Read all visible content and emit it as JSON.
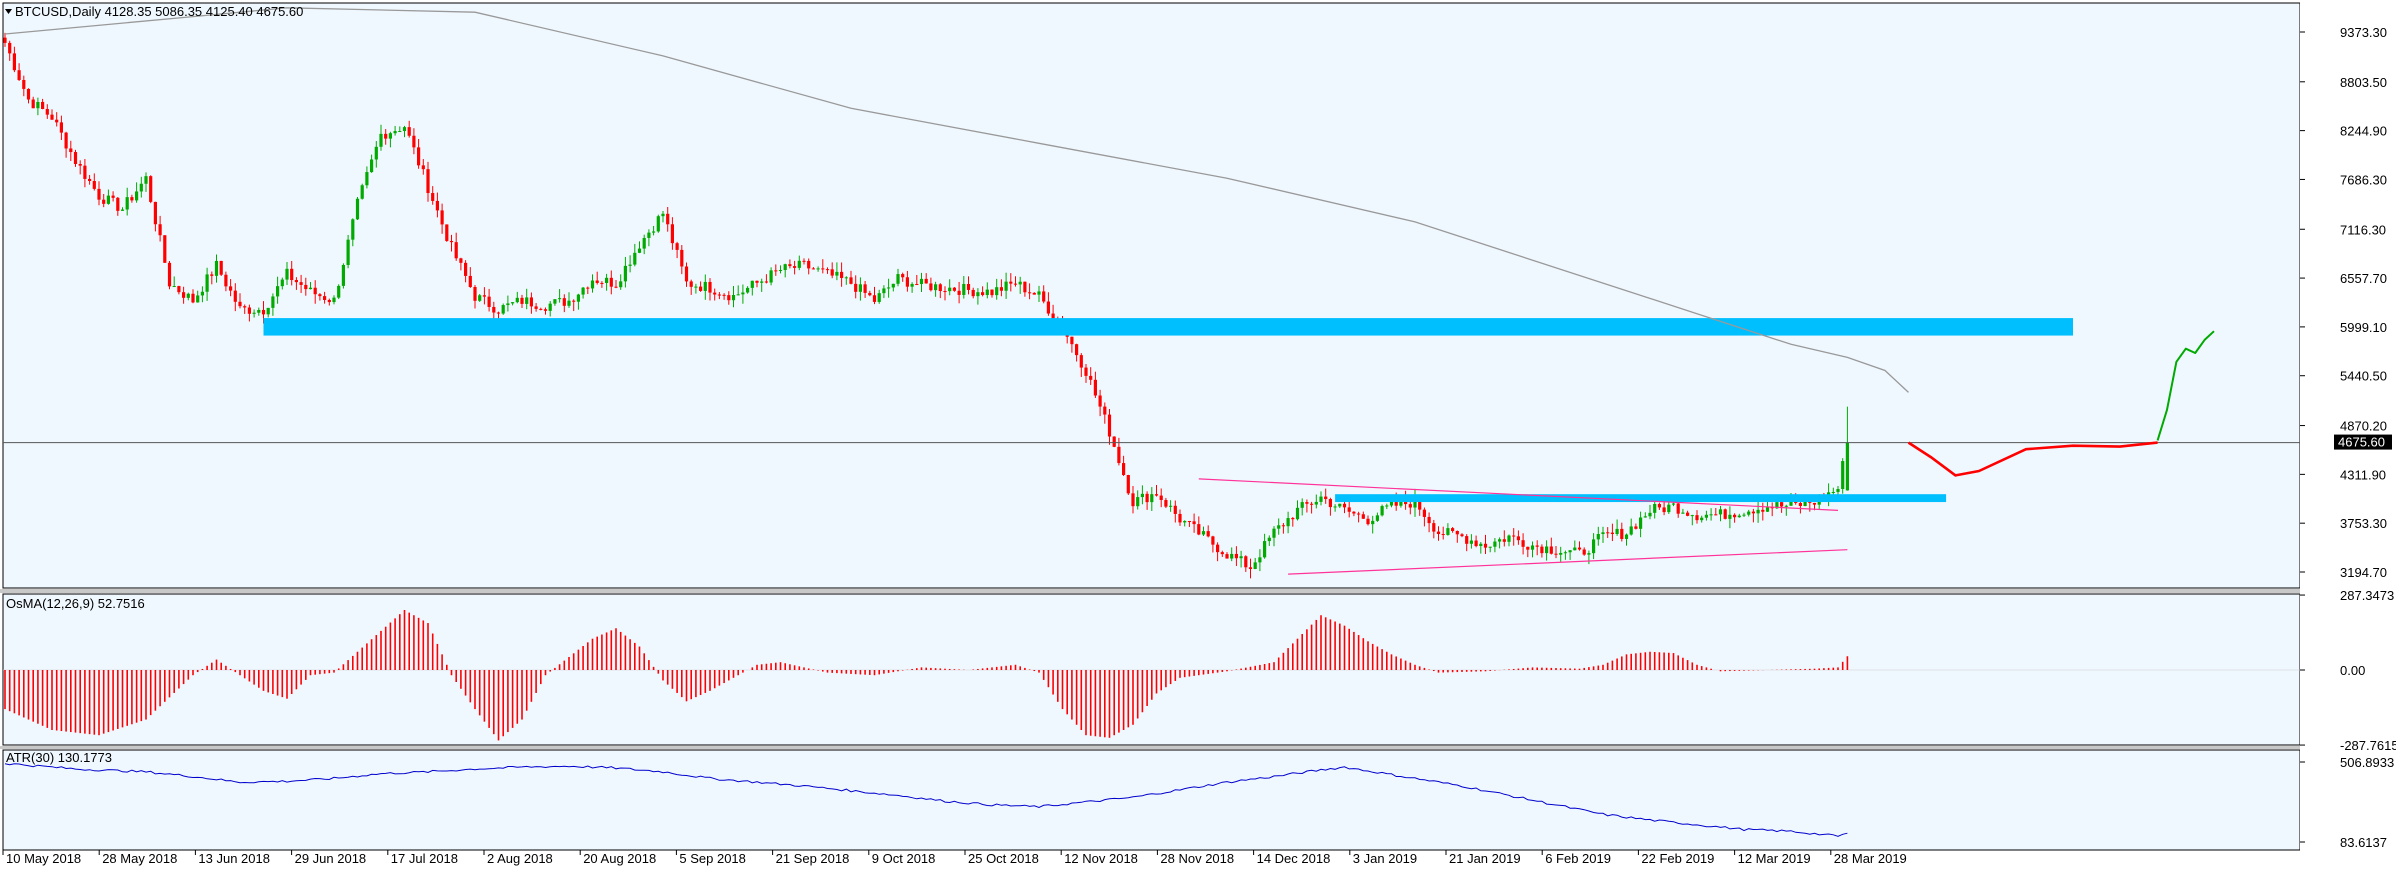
{
  "header": {
    "symbol_line": "BTCUSD,Daily  4128.35 5086.35 4125.40 4675.60"
  },
  "colors": {
    "background": "#f0f8ff",
    "bull": "#00aa00",
    "bear": "#ff0000",
    "zone": "#00bfff",
    "ma": "#999999",
    "triangle": "#ff3399",
    "atr": "#0000cc",
    "projection_red": "#ff0000",
    "projection_green": "#00aa00"
  },
  "chart_data": [
    {
      "type": "candlestick",
      "title": "BTCUSD,Daily  4128.35 5086.35 4125.40 4675.60",
      "ylim": [
        2950,
        9700
      ],
      "y_ticks": [
        "9373.30",
        "8803.50",
        "8244.90",
        "7686.30",
        "7116.30",
        "6557.70",
        "5999.10",
        "5440.50",
        "4870.20",
        "4311.90",
        "3753.30",
        "3194.70"
      ],
      "current_price": "4675.60",
      "x_labels": [
        "10 May 2018",
        "28 May 2018",
        "13 Jun 2018",
        "29 Jun 2018",
        "17 Jul 2018",
        "2 Aug 2018",
        "20 Aug 2018",
        "5 Sep 2018",
        "21 Sep 2018",
        "9 Oct 2018",
        "25 Oct 2018",
        "12 Nov 2018",
        "28 Nov 2018",
        "14 Dec 2018",
        "3 Jan 2019",
        "21 Jan 2019",
        "6 Feb 2019",
        "22 Feb 2019",
        "12 Mar 2019",
        "28 Mar 2019"
      ],
      "close_path": [
        [
          0,
          9250
        ],
        [
          5,
          8600
        ],
        [
          10,
          8400
        ],
        [
          15,
          7900
        ],
        [
          20,
          7500
        ],
        [
          25,
          7350
        ],
        [
          30,
          7700
        ],
        [
          35,
          6500
        ],
        [
          40,
          6300
        ],
        [
          45,
          6700
        ],
        [
          50,
          6200
        ],
        [
          55,
          6200
        ],
        [
          60,
          6600
        ],
        [
          65,
          6400
        ],
        [
          70,
          6300
        ],
        [
          75,
          7400
        ],
        [
          80,
          8200
        ],
        [
          85,
          8300
        ],
        [
          90,
          7600
        ],
        [
          95,
          6900
        ],
        [
          100,
          6350
        ],
        [
          105,
          6200
        ],
        [
          110,
          6300
        ],
        [
          115,
          6250
        ],
        [
          120,
          6300
        ],
        [
          125,
          6550
        ],
        [
          130,
          6500
        ],
        [
          135,
          6950
        ],
        [
          140,
          7300
        ],
        [
          145,
          6500
        ],
        [
          150,
          6450
        ],
        [
          155,
          6350
        ],
        [
          160,
          6500
        ],
        [
          165,
          6650
        ],
        [
          170,
          6700
        ],
        [
          175,
          6600
        ],
        [
          180,
          6500
        ],
        [
          185,
          6300
        ],
        [
          190,
          6550
        ],
        [
          195,
          6480
        ],
        [
          200,
          6450
        ],
        [
          205,
          6420
        ],
        [
          210,
          6400
        ],
        [
          215,
          6500
        ],
        [
          220,
          6350
        ],
        [
          225,
          6000
        ],
        [
          230,
          5500
        ],
        [
          235,
          4800
        ],
        [
          240,
          4000
        ],
        [
          245,
          4100
        ],
        [
          250,
          3800
        ],
        [
          255,
          3600
        ],
        [
          260,
          3400
        ],
        [
          265,
          3250
        ],
        [
          270,
          3650
        ],
        [
          275,
          3900
        ],
        [
          280,
          4050
        ],
        [
          285,
          3900
        ],
        [
          290,
          3800
        ],
        [
          295,
          3950
        ],
        [
          300,
          4000
        ],
        [
          305,
          3650
        ],
        [
          310,
          3600
        ],
        [
          315,
          3500
        ],
        [
          320,
          3600
        ],
        [
          325,
          3500
        ],
        [
          330,
          3450
        ],
        [
          335,
          3400
        ],
        [
          340,
          3600
        ],
        [
          345,
          3650
        ],
        [
          350,
          3900
        ],
        [
          355,
          3950
        ],
        [
          360,
          3850
        ],
        [
          365,
          3850
        ],
        [
          370,
          3900
        ],
        [
          375,
          3950
        ],
        [
          380,
          3950
        ],
        [
          385,
          4000
        ],
        [
          390,
          4150
        ],
        [
          392,
          4675.6
        ]
      ],
      "horizontal_zones": [
        {
          "from": 55,
          "to": 440,
          "low": 5900,
          "high": 6100
        },
        {
          "from": 283,
          "to": 413,
          "low": 3995,
          "high": 4085
        }
      ],
      "moving_average": [
        [
          0,
          9350
        ],
        [
          40,
          9550
        ],
        [
          60,
          9650
        ],
        [
          100,
          9600
        ],
        [
          140,
          9100
        ],
        [
          180,
          8500
        ],
        [
          220,
          8100
        ],
        [
          260,
          7700
        ],
        [
          300,
          7200
        ],
        [
          320,
          6850
        ],
        [
          340,
          6500
        ],
        [
          360,
          6150
        ],
        [
          380,
          5800
        ],
        [
          392,
          5650
        ],
        [
          400,
          5500
        ],
        [
          405,
          5250
        ]
      ],
      "triangle": {
        "upper": [
          [
            254,
            4260
          ],
          [
            390,
            3900
          ]
        ],
        "lower": [
          [
            273,
            3170
          ],
          [
            392,
            3450
          ]
        ]
      },
      "projection_red": [
        [
          405,
          4675.6
        ],
        [
          410,
          4500
        ],
        [
          415,
          4300
        ],
        [
          420,
          4350
        ],
        [
          430,
          4600
        ],
        [
          440,
          4640
        ],
        [
          450,
          4630
        ],
        [
          458,
          4675.6
        ]
      ],
      "projection_green": [
        [
          458,
          4700
        ],
        [
          460,
          5050
        ],
        [
          462,
          5600
        ],
        [
          464,
          5750
        ],
        [
          466,
          5700
        ],
        [
          468,
          5850
        ],
        [
          470,
          5950
        ]
      ]
    },
    {
      "type": "bar",
      "title": "OsMA(12,26,9) 52.7516",
      "ylim": [
        -287.7615,
        287.3473
      ],
      "y_ticks": [
        "287.3473",
        "0.00",
        "-287.7615"
      ],
      "last_value": 52.7516
    },
    {
      "type": "line",
      "title": "ATR(30) 130.1773",
      "ylim": [
        83.6137,
        506.8933
      ],
      "y_ticks": [
        "506.8933",
        "83.6137"
      ],
      "last_value": 130.1773
    }
  ]
}
